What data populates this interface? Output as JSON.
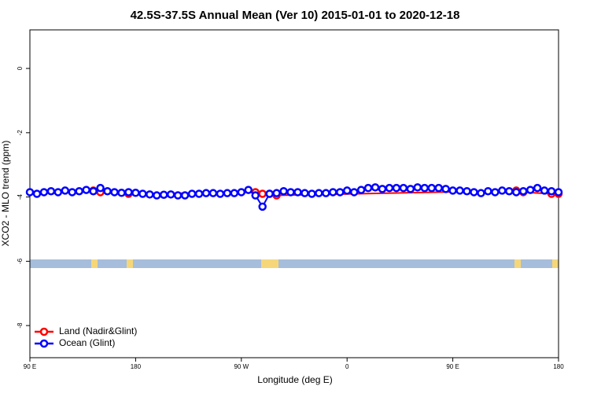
{
  "chart_data": {
    "type": "line",
    "title": "42.5S-37.5S Annual Mean (Ver 10)   2015-01-01 to 2020-12-18",
    "xlabel": "Longitude (deg E)",
    "ylabel": "XCO2 - MLO trend (ppm)",
    "xlim": [
      90,
      540
    ],
    "xticks": [
      {
        "value": 90,
        "label": "90 E"
      },
      180,
      {
        "value": 270,
        "label": "90 W"
      },
      {
        "value": 360,
        "label": "0"
      },
      {
        "value": 450,
        "label": "90 E"
      },
      {
        "value": 540,
        "label": "180"
      }
    ],
    "ylim": [
      -9,
      1.2
    ],
    "yticks": [
      -8,
      -6,
      -4,
      -2,
      0
    ],
    "legend": "bottomleft",
    "series": [
      {
        "name": "Land (Nadir&Glint)",
        "color": "#ff0000",
        "x": [
          144,
          150,
          174,
          282,
          288,
          294,
          300,
          504,
          510,
          534,
          540
        ],
        "values": [
          -3.8,
          -3.85,
          -3.9,
          -3.85,
          -3.9,
          -3.9,
          -3.95,
          -3.8,
          -3.85,
          -3.9,
          -3.9
        ]
      },
      {
        "name": "Ocean (Glint)",
        "color": "#0000ff",
        "x": [
          90,
          96,
          102,
          108,
          114,
          120,
          126,
          132,
          138,
          144,
          150,
          156,
          162,
          168,
          174,
          180,
          186,
          192,
          198,
          204,
          210,
          216,
          222,
          228,
          234,
          240,
          246,
          252,
          258,
          264,
          270,
          276,
          282,
          288,
          294,
          300,
          306,
          312,
          318,
          324,
          330,
          336,
          342,
          348,
          354,
          360,
          366,
          372,
          378,
          384,
          390,
          396,
          402,
          408,
          414,
          420,
          426,
          432,
          438,
          444,
          450,
          456,
          462,
          468,
          474,
          480,
          486,
          492,
          498,
          504,
          510,
          516,
          522,
          528,
          534,
          540
        ],
        "values": [
          -3.85,
          -3.9,
          -3.85,
          -3.82,
          -3.85,
          -3.8,
          -3.85,
          -3.82,
          -3.78,
          -3.82,
          -3.72,
          -3.82,
          -3.85,
          -3.87,
          -3.85,
          -3.87,
          -3.9,
          -3.92,
          -3.95,
          -3.93,
          -3.92,
          -3.95,
          -3.95,
          -3.9,
          -3.9,
          -3.88,
          -3.88,
          -3.9,
          -3.88,
          -3.88,
          -3.85,
          -3.78,
          -3.95,
          -4.3,
          -3.9,
          -3.88,
          -3.82,
          -3.85,
          -3.85,
          -3.88,
          -3.9,
          -3.88,
          -3.88,
          -3.85,
          -3.85,
          -3.8,
          -3.85,
          -3.78,
          -3.72,
          -3.7,
          -3.75,
          -3.72,
          -3.72,
          -3.72,
          -3.75,
          -3.7,
          -3.72,
          -3.72,
          -3.72,
          -3.75,
          -3.8,
          -3.8,
          -3.82,
          -3.85,
          -3.88,
          -3.82,
          -3.85,
          -3.8,
          -3.82,
          -3.85,
          -3.82,
          -3.78,
          -3.72,
          -3.8,
          -3.82,
          -3.85
        ]
      }
    ]
  }
}
